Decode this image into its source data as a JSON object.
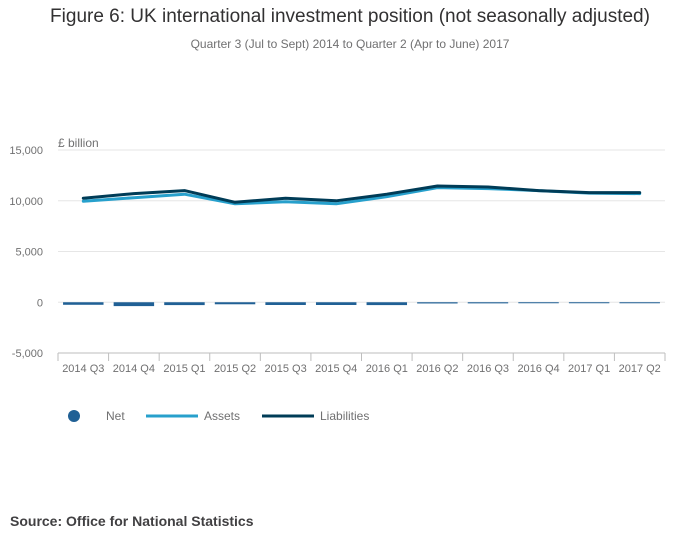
{
  "title": "Figure 6: UK international investment position (not seasonally adjusted)",
  "subtitle": "Quarter 3 (Jul to Sept) 2014 to Quarter 2 (Apr to June) 2017",
  "source": "Source: Office for National Statistics",
  "colors": {
    "net": "#206095",
    "assets": "#27a0cc",
    "liabilities": "#003c57",
    "grid": "#e6e6e6",
    "axis": "#bebebe",
    "text": "#707071"
  },
  "chart_data": {
    "type": "line",
    "title": "Figure 6: UK international investment position (not seasonally adjusted)",
    "ylabel": "£ billion",
    "xlabel": "",
    "ylim": [
      -5000,
      15000
    ],
    "yticks": [
      15000,
      10000,
      5000,
      0,
      -5000
    ],
    "ytick_labels": [
      "15,000",
      "10,000",
      "5,000",
      "0",
      "-5,000"
    ],
    "categories": [
      "2014 Q3",
      "2014 Q4",
      "2015 Q1",
      "2015 Q2",
      "2015 Q3",
      "2015 Q4",
      "2016 Q1",
      "2016 Q2",
      "2016 Q3",
      "2016 Q4",
      "2017 Q1",
      "2017 Q2"
    ],
    "series": [
      {
        "name": "Net",
        "kind": "bar",
        "values": [
          -250,
          -380,
          -280,
          -200,
          -270,
          -270,
          -280,
          -120,
          -110,
          -20,
          -30,
          -100
        ]
      },
      {
        "name": "Assets",
        "kind": "line",
        "values": [
          9950,
          10300,
          10650,
          9700,
          9900,
          9700,
          10400,
          11300,
          11200,
          11000,
          10750,
          10700
        ]
      },
      {
        "name": "Liabilities",
        "kind": "line",
        "values": [
          10250,
          10700,
          11000,
          9850,
          10250,
          10000,
          10650,
          11450,
          11350,
          11000,
          10800,
          10800
        ]
      }
    ],
    "legend": [
      "Net",
      "Assets",
      "Liabilities"
    ],
    "legend_position": "bottom-left"
  }
}
